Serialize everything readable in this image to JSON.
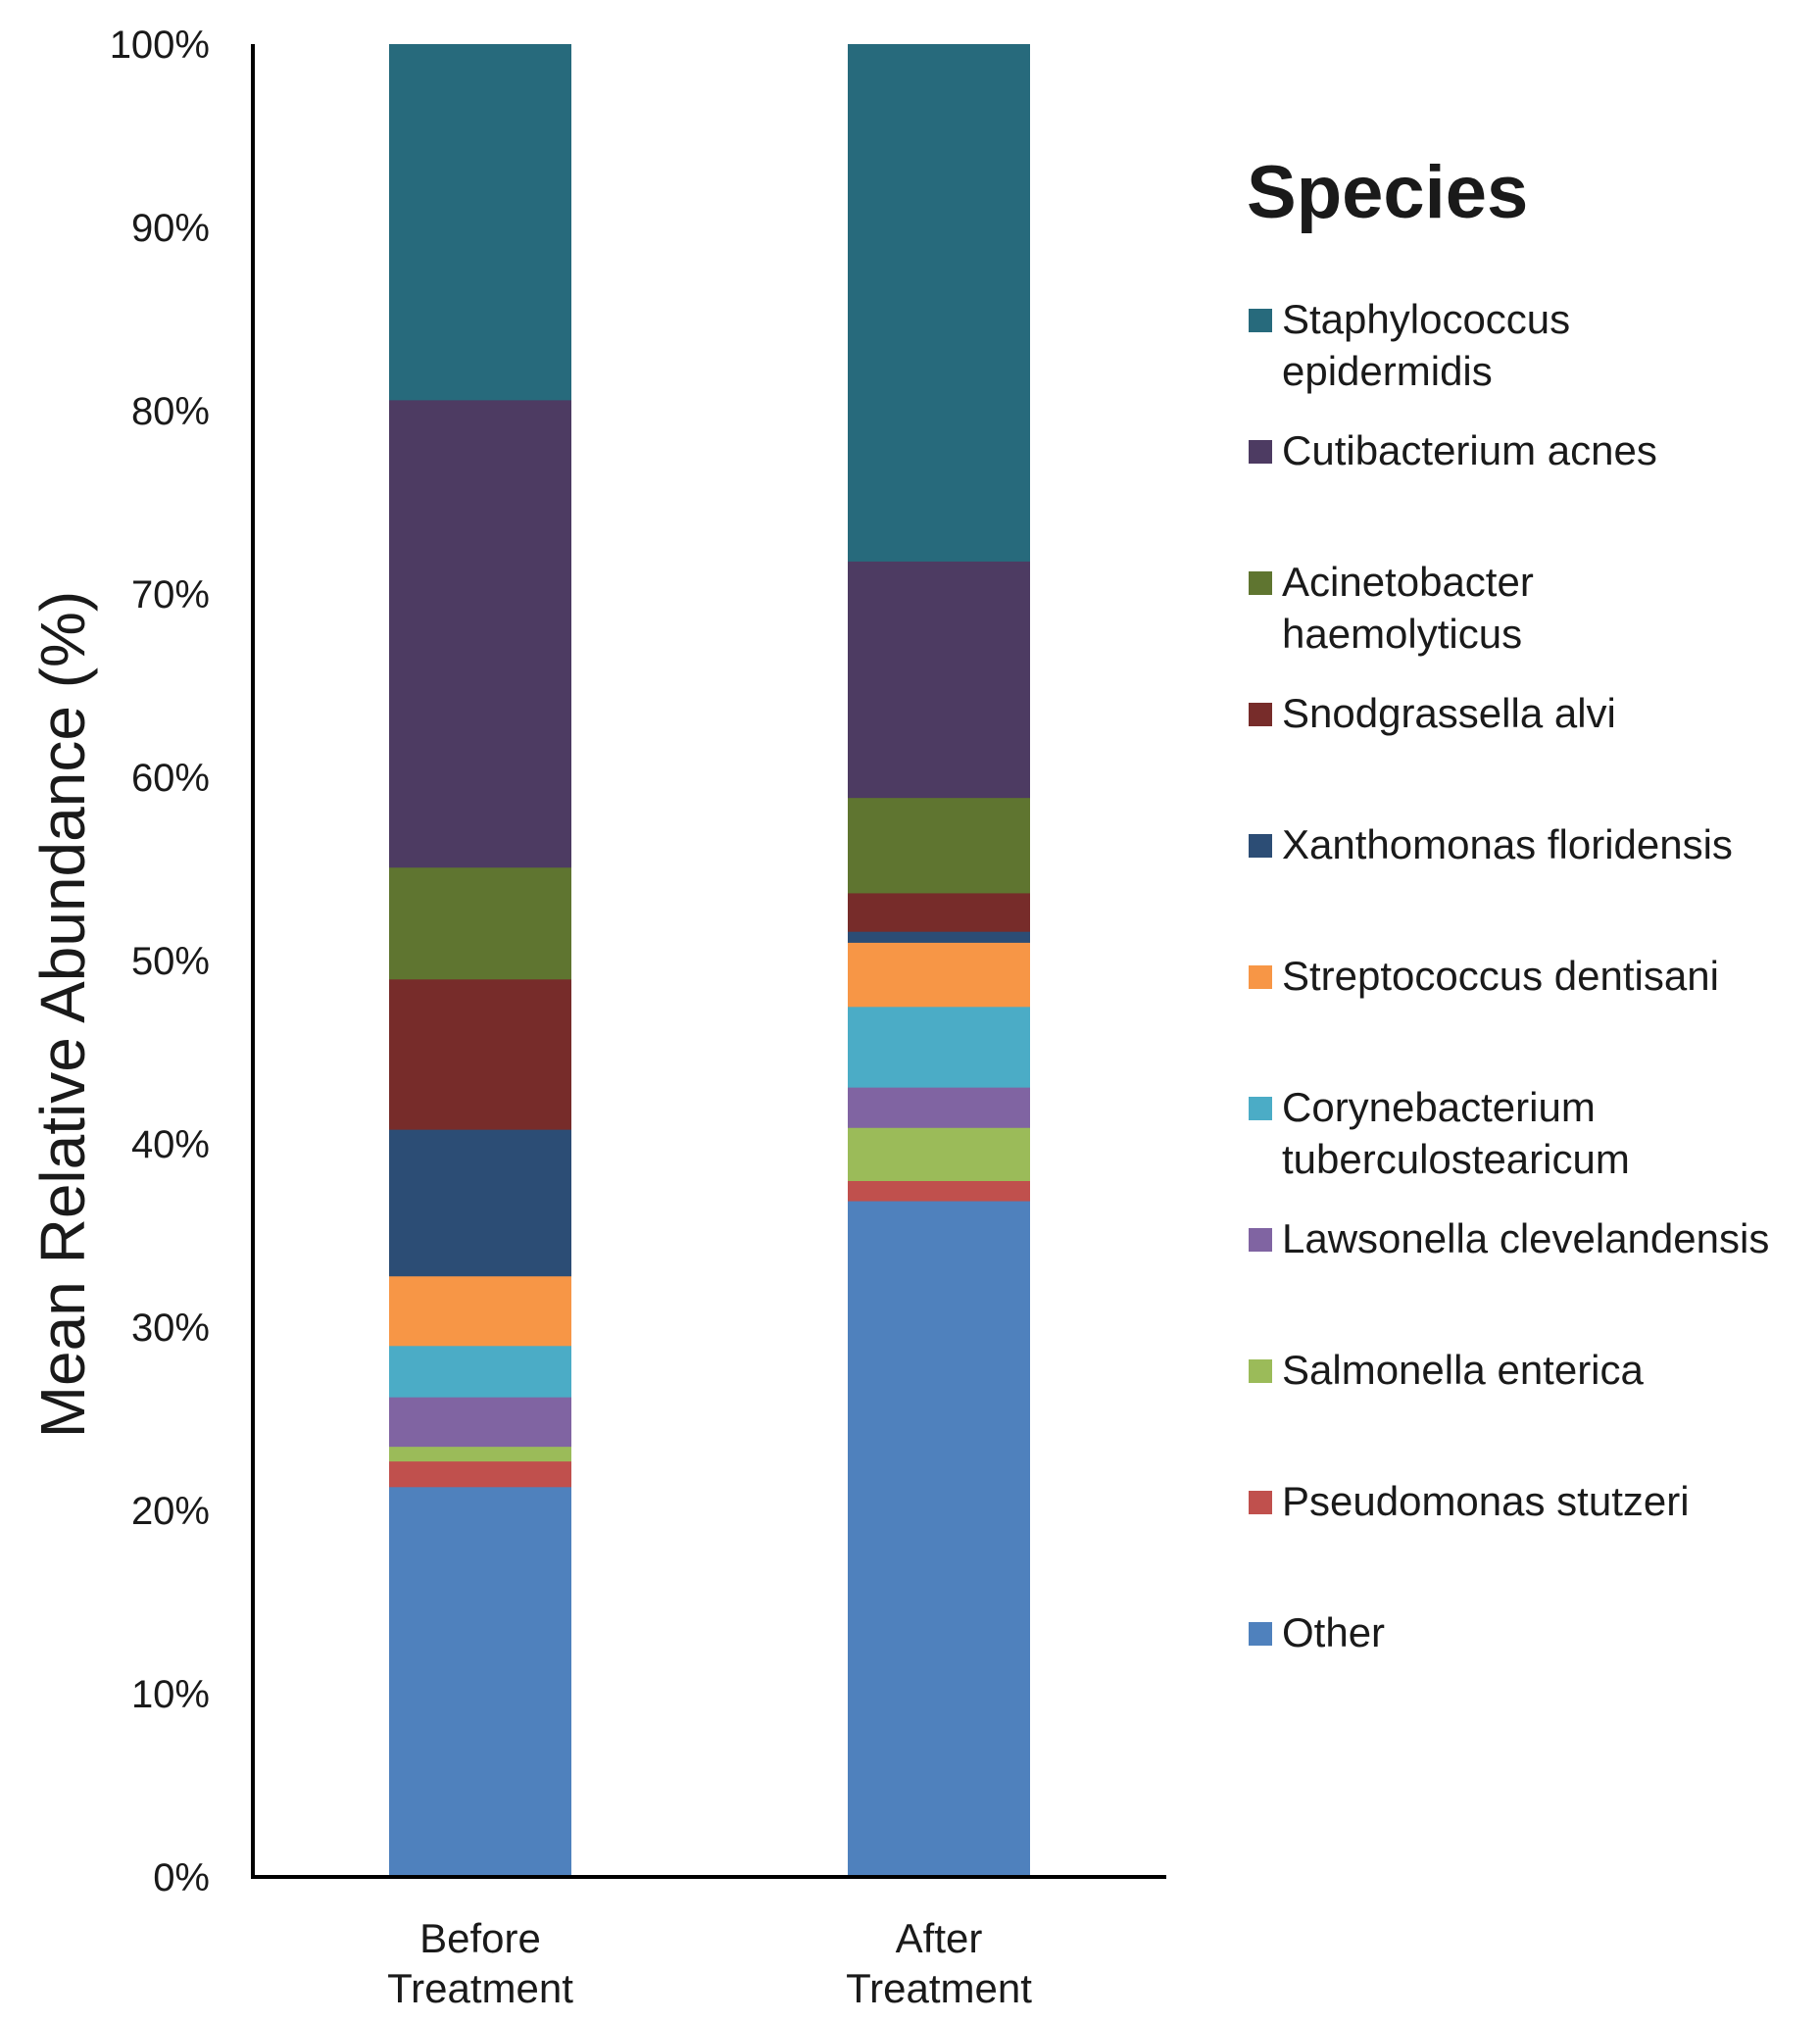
{
  "chart_data": {
    "type": "bar",
    "stacked": true,
    "title": "",
    "xlabel": "",
    "ylabel": "Mean Relative Abundance (%)",
    "ylim": [
      0,
      100
    ],
    "ytick_labels": [
      "0%",
      "10%",
      "20%",
      "30%",
      "40%",
      "50%",
      "60%",
      "70%",
      "80%",
      "90%",
      "100%"
    ],
    "categories": [
      {
        "line1": "Before",
        "line2": "Treatment"
      },
      {
        "line1": "After",
        "line2": "Treatment"
      }
    ],
    "legend_title": "Species",
    "legend_position": "right",
    "series": [
      {
        "name": "Other",
        "color": "#4f81bd",
        "values": [
          21.3,
          36.9
        ]
      },
      {
        "name": "Pseudomonas stutzeri",
        "color": "#c0504d",
        "values": [
          1.4,
          1.1
        ]
      },
      {
        "name": "Salmonella enterica",
        "color": "#9bbb59",
        "values": [
          0.8,
          2.9
        ]
      },
      {
        "name": "Lawsonella clevelandensis",
        "color": "#8064a2",
        "values": [
          2.7,
          2.2
        ]
      },
      {
        "name": "Corynebacterium tuberculostearicum",
        "color": "#4bacc6",
        "values": [
          2.8,
          4.4
        ]
      },
      {
        "name": "Streptococcus dentisani",
        "color": "#f79646",
        "values": [
          3.8,
          3.5
        ]
      },
      {
        "name": "Xanthomonas floridensis",
        "color": "#2c4d75",
        "values": [
          8.0,
          0.6
        ]
      },
      {
        "name": "Snodgrassella alvi",
        "color": "#772c2a",
        "values": [
          8.2,
          2.1
        ]
      },
      {
        "name": "Acinetobacter haemolyticus",
        "color": "#5f7530",
        "values": [
          6.1,
          5.2
        ]
      },
      {
        "name": "Cutibacterium acnes",
        "color": "#4d3b62",
        "values": [
          25.5,
          12.9
        ]
      },
      {
        "name": "Staphylococcus epidermidis",
        "color": "#276a7c",
        "values": [
          19.4,
          28.2
        ]
      }
    ],
    "legend_items": [
      {
        "line1": "Staphylococcus",
        "line2": "epidermidis",
        "color": "#276a7c"
      },
      {
        "line1": "Cutibacterium acnes",
        "line2": "",
        "color": "#4d3b62"
      },
      {
        "line1": "Acinetobacter",
        "line2": "haemolyticus",
        "color": "#5f7530"
      },
      {
        "line1": "Snodgrassella alvi",
        "line2": "",
        "color": "#772c2a"
      },
      {
        "line1": "Xanthomonas floridensis",
        "line2": "",
        "color": "#2c4d75"
      },
      {
        "line1": "Streptococcus dentisani",
        "line2": "",
        "color": "#f79646"
      },
      {
        "line1": "Corynebacterium",
        "line2": "tuberculostearicum",
        "color": "#4bacc6"
      },
      {
        "line1": "Lawsonella clevelandensis",
        "line2": "",
        "color": "#8064a2"
      },
      {
        "line1": "Salmonella enterica",
        "line2": "",
        "color": "#9bbb59"
      },
      {
        "line1": "Pseudomonas stutzeri",
        "line2": "",
        "color": "#c0504d"
      },
      {
        "line1": "Other",
        "line2": "",
        "color": "#4f81bd"
      }
    ]
  }
}
